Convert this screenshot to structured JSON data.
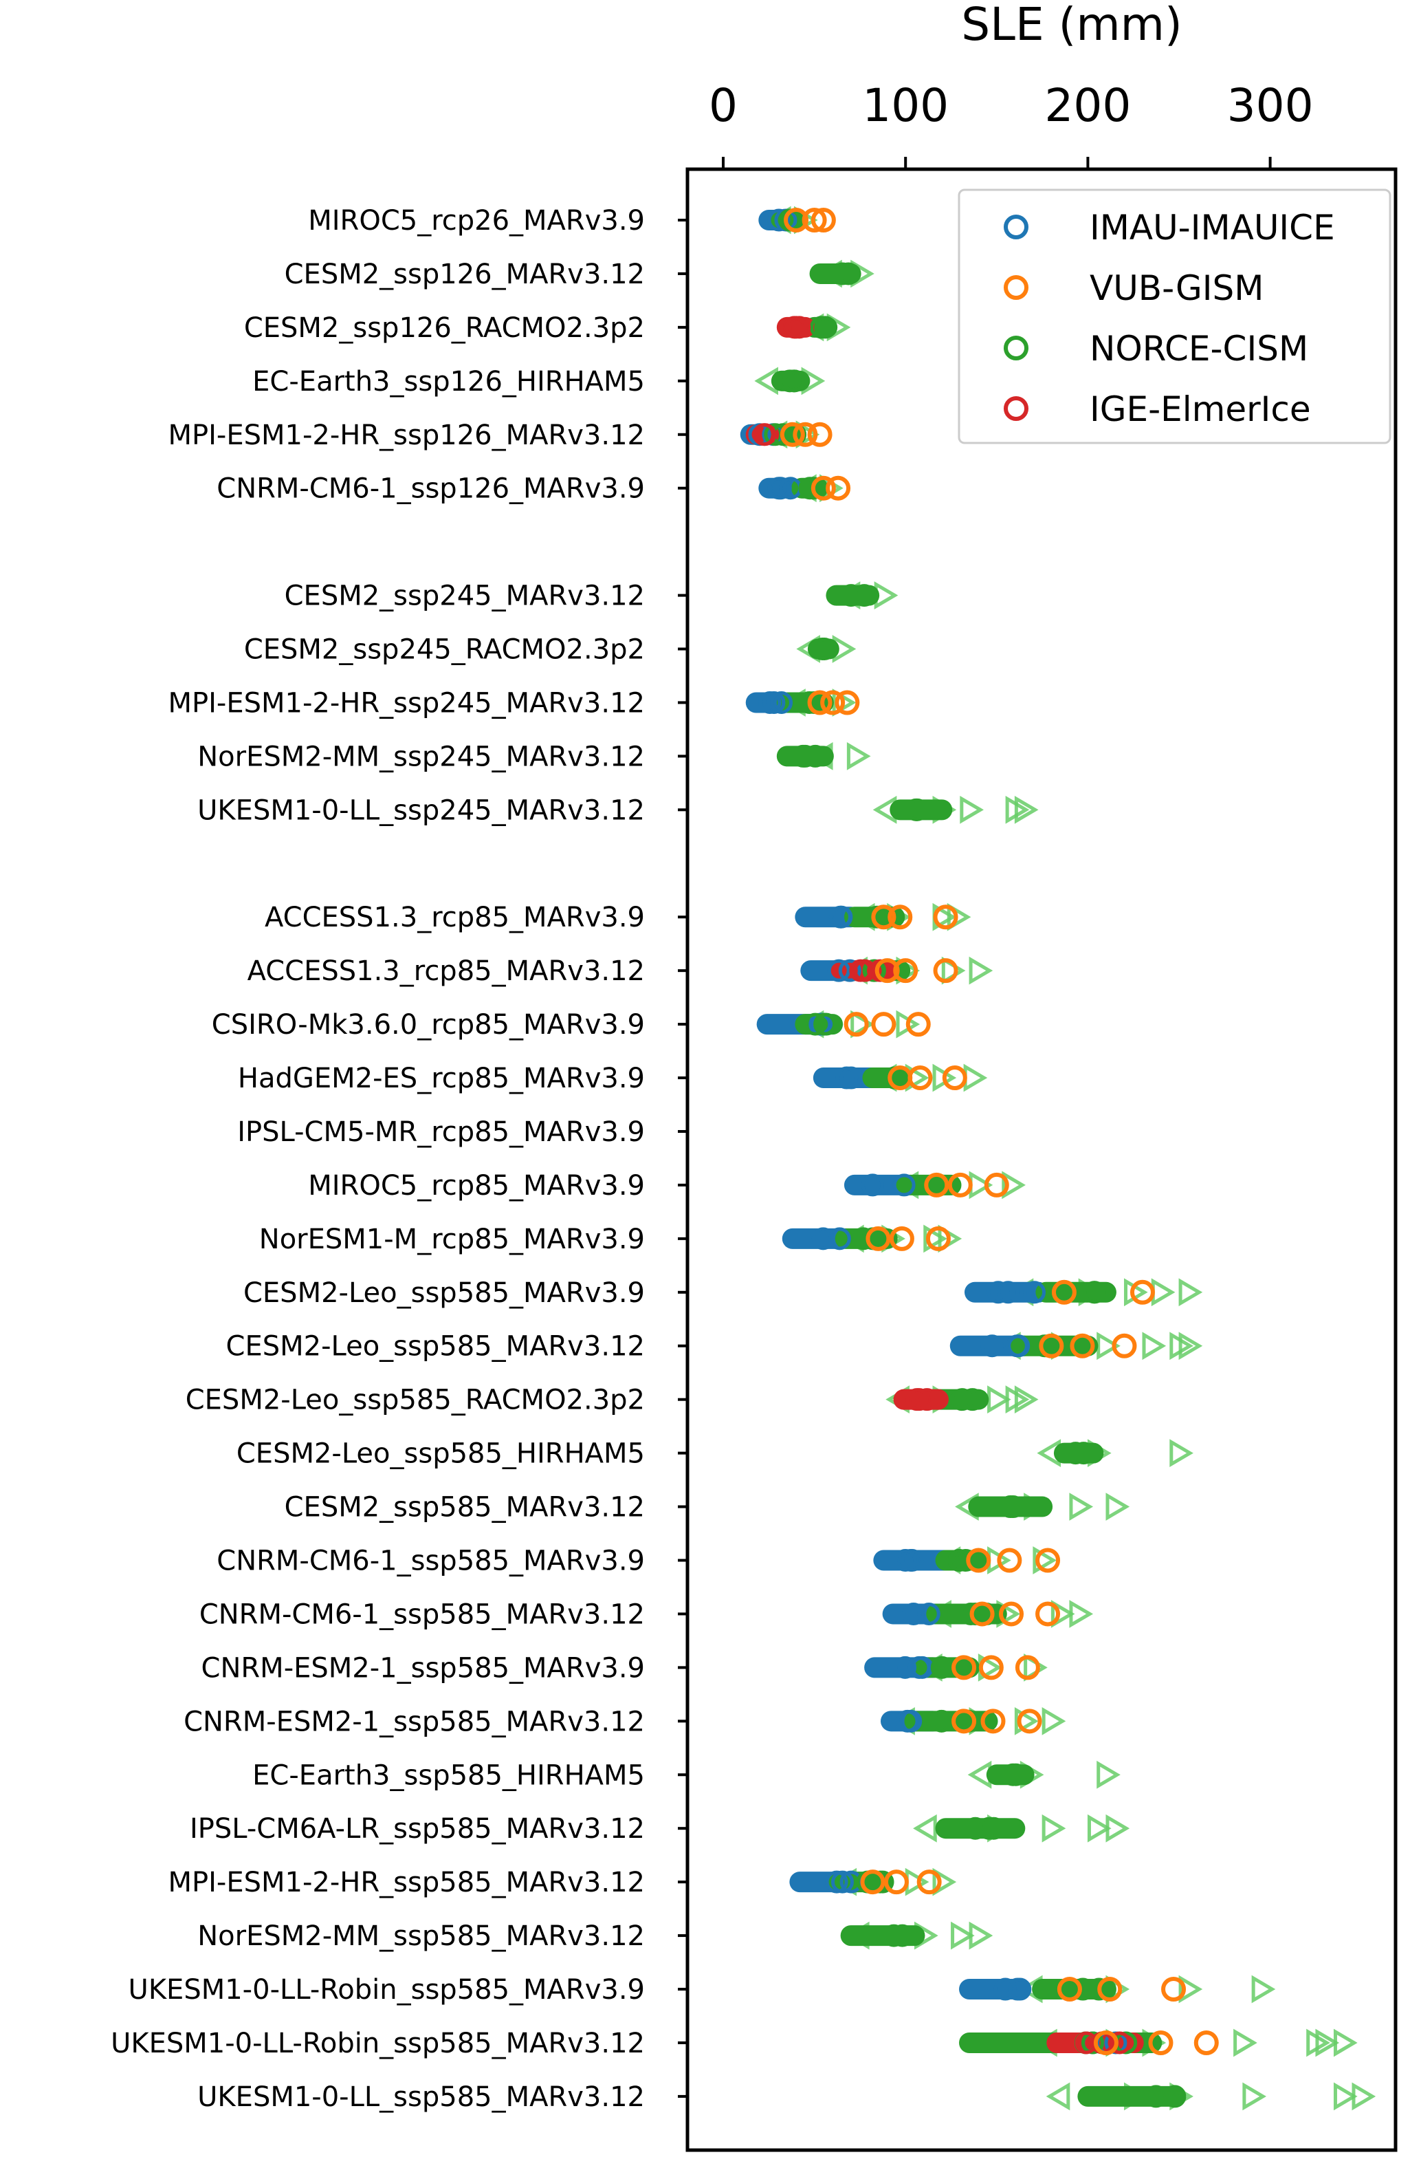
{
  "chart_data": {
    "type": "scatter",
    "orientation": "horizontal",
    "xlabel": "SLE (mm)",
    "x_axis_position": "top",
    "xlim": [
      -20,
      358
    ],
    "xticks": [
      0,
      100,
      200,
      300
    ],
    "grid": false,
    "legend_placement": "top-right",
    "series": [
      {
        "name": "IMAU-IMAUICE",
        "color": "#1f77b4",
        "marker": "open-circle"
      },
      {
        "name": "VUB-GISM",
        "color": "#ff7f0e",
        "marker": "open-circle"
      },
      {
        "name": "NORCE-CISM",
        "color": "#2ca02c",
        "marker": "open-circle"
      },
      {
        "name": "IGE-ElmerIce",
        "color": "#d62728",
        "marker": "open-circle"
      }
    ],
    "triangle_color": "#66cc66",
    "triangle_meaning": "",
    "categories": [
      {
        "label": "MIROC5_rcp26_MARv3.9",
        "IMAU": [
          25,
          38
        ],
        "VUB": [
          40,
          50,
          55
        ],
        "NORCE": [
          30,
          40
        ],
        "TRI": [
          32,
          44
        ]
      },
      {
        "label": "CESM2_ssp126_MARv3.12",
        "NORCE": [
          53,
          70
        ],
        "TRI": [
          60,
          75
        ]
      },
      {
        "label": "CESM2_ssp126_RACMO2.3p2",
        "IGE": [
          35,
          45
        ],
        "NORCE": [
          50,
          57
        ],
        "TRI": [
          50,
          62
        ]
      },
      {
        "label": "EC-Earth3_ssp126_HIRHAM5",
        "NORCE": [
          32,
          42
        ],
        "TRI": [
          25,
          48
        ]
      },
      {
        "label": "MPI-ESM1-2-HR_ssp126_MARv3.12",
        "IMAU": [
          15,
          28
        ],
        "VUB": [
          38,
          45,
          53
        ],
        "NORCE": [
          20,
          40
        ],
        "IGE": [
          18,
          25
        ],
        "TRI": [
          30,
          45
        ]
      },
      {
        "label": "CNRM-CM6-1_ssp126_MARv3.9",
        "IMAU": [
          25,
          37
        ],
        "VUB": [
          55,
          63
        ],
        "NORCE": [
          43,
          52
        ],
        "TRI": [
          46,
          58
        ]
      },
      null,
      {
        "label": "CESM2_ssp245_MARv3.12",
        "NORCE": [
          62,
          80
        ],
        "TRI": [
          70,
          88
        ]
      },
      {
        "label": "CESM2_ssp245_RACMO2.3p2",
        "NORCE": [
          52,
          58
        ],
        "TRI": [
          48,
          65
        ]
      },
      {
        "label": "MPI-ESM1-2-HR_ssp245_MARv3.12",
        "IMAU": [
          18,
          33
        ],
        "VUB": [
          53,
          60,
          68
        ],
        "NORCE": [
          35,
          55
        ],
        "TRI": [
          40,
          65
        ]
      },
      {
        "label": "NorESM2-MM_ssp245_MARv3.12",
        "NORCE": [
          35,
          55
        ],
        "TRI": [
          55,
          73
        ]
      },
      {
        "label": "UKESM1-0-LL_ssp245_MARv3.12",
        "NORCE": [
          97,
          120
        ],
        "TRI": [
          90,
          120,
          135,
          160,
          165
        ]
      },
      null,
      {
        "label": "ACCESS1.3_rcp85_MARv3.9",
        "IMAU": [
          45,
          70
        ],
        "VUB": [
          88,
          97,
          122
        ],
        "NORCE": [
          72,
          94
        ],
        "TRI": [
          78,
          95,
          120,
          128
        ]
      },
      {
        "label": "ACCESS1.3_rcp85_MARv3.12",
        "IMAU": [
          48,
          72
        ],
        "VUB": [
          90,
          100,
          122
        ],
        "NORCE": [
          68,
          97
        ],
        "IGE": [
          64,
          90
        ],
        "TRI": [
          74,
          100,
          125,
          140
        ]
      },
      {
        "label": "CSIRO-Mk3.6.0_rcp85_MARv3.9",
        "IMAU": [
          24,
          56
        ],
        "VUB": [
          73,
          88,
          107
        ],
        "NORCE": [
          45,
          60
        ],
        "TRI": [
          50,
          75,
          100
        ]
      },
      {
        "label": "HadGEM2-ES_rcp85_MARv3.9",
        "IMAU": [
          55,
          81
        ],
        "VUB": [
          97,
          108,
          127
        ],
        "NORCE": [
          82,
          97
        ],
        "TRI": [
          90,
          105,
          120,
          137
        ]
      },
      {
        "label": "IPSL-CM5-MR_rcp85_MARv3.9"
      },
      {
        "label": "MIROC5_rcp85_MARv3.9",
        "IMAU": [
          72,
          100
        ],
        "VUB": [
          117,
          130,
          150
        ],
        "NORCE": [
          100,
          125
        ],
        "TRI": [
          102,
          140,
          158
        ]
      },
      {
        "label": "NorESM1-M_rcp85_MARv3.9",
        "IMAU": [
          38,
          64
        ],
        "VUB": [
          85,
          98,
          118
        ],
        "NORCE": [
          67,
          90
        ],
        "TRI": [
          72,
          92,
          115,
          123
        ]
      },
      {
        "label": "CESM2-Leo_ssp585_MARv3.9",
        "IMAU": [
          138,
          173
        ],
        "VUB": [
          187,
          230
        ],
        "NORCE": [
          177,
          210
        ],
        "TRI": [
          165,
          200,
          225,
          240,
          255
        ]
      },
      {
        "label": "CESM2-Leo_ssp585_MARv3.12",
        "IMAU": [
          130,
          165
        ],
        "VUB": [
          180,
          197,
          220
        ],
        "NORCE": [
          162,
          200
        ],
        "TRI": [
          158,
          185,
          210,
          235,
          250,
          255
        ]
      },
      {
        "label": "CESM2-Leo_ssp585_RACMO2.3p2",
        "IGE": [
          99,
          118
        ],
        "NORCE": [
          110,
          140
        ],
        "TRI": [
          97,
          120,
          150,
          160,
          165
        ]
      },
      {
        "label": "CESM2-Leo_ssp585_HIRHAM5",
        "NORCE": [
          187,
          203
        ],
        "TRI": [
          180,
          205,
          250
        ]
      },
      {
        "label": "CESM2_ssp585_MARv3.12",
        "NORCE": [
          140,
          175
        ],
        "TRI": [
          135,
          170,
          195,
          215
        ]
      },
      {
        "label": "CNRM-CM6-1_ssp585_MARv3.9",
        "IMAU": [
          88,
          122
        ],
        "VUB": [
          140,
          157,
          178
        ],
        "NORCE": [
          122,
          140
        ],
        "TRI": [
          125,
          150,
          175
        ]
      },
      {
        "label": "CNRM-CM6-1_ssp585_MARv3.12",
        "IMAU": [
          93,
          125
        ],
        "VUB": [
          142,
          158,
          178
        ],
        "NORCE": [
          117,
          150
        ],
        "TRI": [
          120,
          155,
          185,
          195
        ]
      },
      {
        "label": "CNRM-ESM2-1_ssp585_MARv3.9",
        "IMAU": [
          83,
          115
        ],
        "VUB": [
          132,
          147,
          167
        ],
        "NORCE": [
          110,
          135
        ],
        "TRI": [
          115,
          145,
          170
        ]
      },
      {
        "label": "CNRM-ESM2-1_ssp585_MARv3.12",
        "IMAU": [
          92,
          115
        ],
        "VUB": [
          132,
          148,
          168
        ],
        "NORCE": [
          105,
          145
        ],
        "TRI": [
          100,
          140,
          165,
          180
        ]
      },
      {
        "label": "EC-Earth3_ssp585_HIRHAM5",
        "NORCE": [
          150,
          165
        ],
        "TRI": [
          142,
          168,
          210
        ]
      },
      {
        "label": "IPSL-CM6A-LR_ssp585_MARv3.12",
        "NORCE": [
          122,
          160
        ],
        "TRI": [
          112,
          150,
          180,
          205,
          215
        ]
      },
      {
        "label": "MPI-ESM1-2-HR_ssp585_MARv3.12",
        "IMAU": [
          42,
          72
        ],
        "VUB": [
          82,
          95,
          113
        ],
        "NORCE": [
          63,
          88
        ],
        "TRI": [
          68,
          105,
          120
        ]
      },
      {
        "label": "NorESM2-MM_ssp585_MARv3.12",
        "NORCE": [
          70,
          105
        ],
        "TRI": [
          75,
          110,
          130,
          140
        ]
      },
      {
        "label": "UKESM1-0-LL-Robin_ssp585_MARv3.9",
        "IMAU": [
          135,
          163
        ],
        "VUB": [
          190,
          212,
          247
        ],
        "NORCE": [
          175,
          210
        ],
        "TRI": [
          170,
          215,
          255,
          295
        ]
      },
      {
        "label": "UKESM1-0-LL-Robin_ssp585_MARv3.12",
        "IMAU": [
          158,
          232
        ],
        "VUB": [
          210,
          240,
          265
        ],
        "NORCE": [
          135,
          235
        ],
        "IGE": [
          183,
          225
        ],
        "TRI": [
          178,
          215,
          235,
          285,
          325,
          330,
          340
        ]
      },
      {
        "label": "UKESM1-0-LL_ssp585_MARv3.12",
        "NORCE": [
          200,
          248
        ],
        "TRI": [
          185,
          225,
          250,
          290,
          340,
          350
        ]
      }
    ]
  }
}
